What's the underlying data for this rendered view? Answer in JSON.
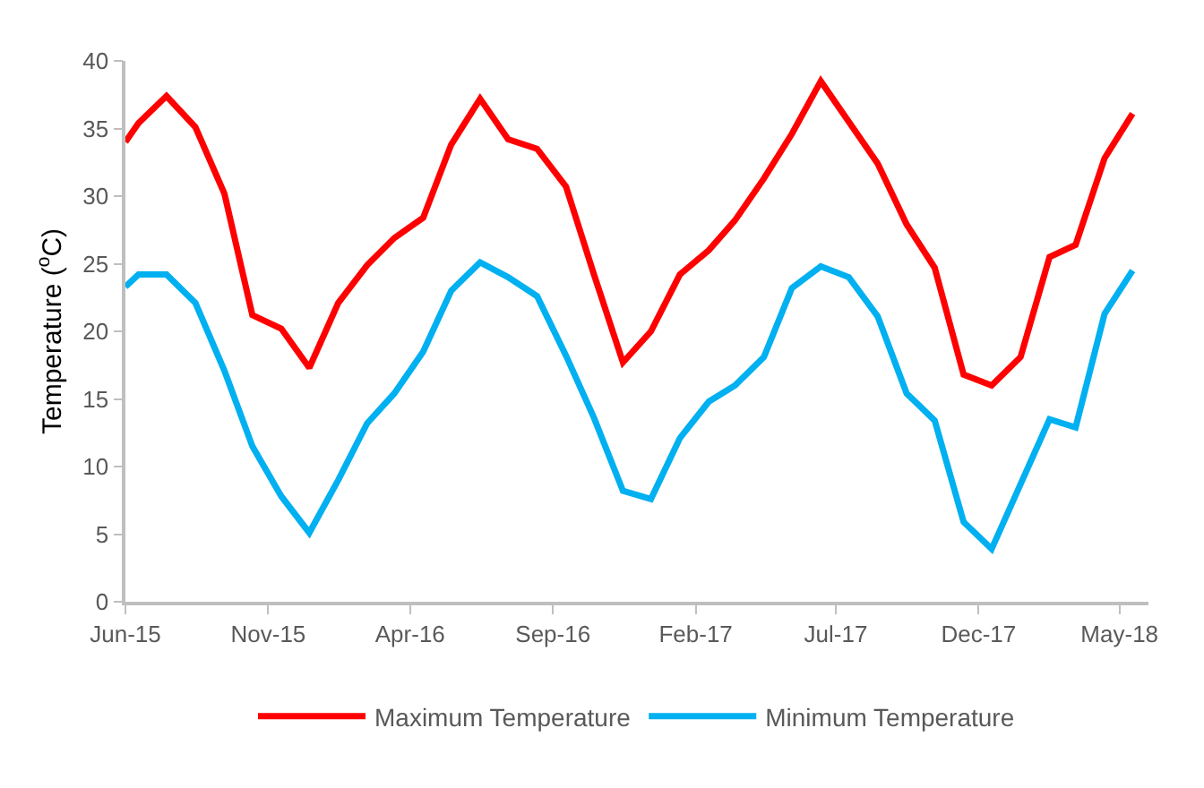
{
  "chart_data": {
    "type": "line",
    "ylabel": "Temperature ($^{o}$C)",
    "x": [
      "2015-06-01",
      "2015-06-15",
      "2015-07-15",
      "2015-08-15",
      "2015-09-15",
      "2015-10-15",
      "2015-11-15",
      "2015-12-15",
      "2016-01-15",
      "2016-02-15",
      "2016-03-15",
      "2016-04-15",
      "2016-05-15",
      "2016-06-15",
      "2016-07-15",
      "2016-08-15",
      "2016-09-15",
      "2016-10-15",
      "2016-11-15",
      "2016-12-15",
      "2017-01-15",
      "2017-02-15",
      "2017-03-15",
      "2017-04-15",
      "2017-05-15",
      "2017-06-15",
      "2017-07-15",
      "2017-08-15",
      "2017-09-15",
      "2017-10-15",
      "2017-11-15",
      "2017-12-15",
      "2018-01-15",
      "2018-02-15",
      "2018-03-15",
      "2018-04-15",
      "2018-05-15"
    ],
    "series": [
      {
        "name": "Maximum Temperature",
        "color": "#ff0000",
        "values": [
          34.0,
          35.4,
          37.4,
          35.1,
          30.2,
          21.2,
          20.2,
          17.3,
          22.1,
          24.9,
          26.9,
          28.4,
          33.8,
          37.2,
          34.2,
          33.5,
          30.7,
          24.2,
          17.7,
          20.0,
          24.2,
          26.0,
          28.2,
          31.3,
          34.6,
          38.5,
          35.5,
          32.4,
          27.9,
          24.7,
          16.8,
          16.0,
          18.1,
          25.5,
          26.4,
          32.8,
          36.1
        ]
      },
      {
        "name": "Minimum Temperature",
        "color": "#00b0f0",
        "values": [
          23.3,
          24.2,
          24.2,
          22.1,
          17.1,
          11.5,
          7.8,
          5.1,
          9.0,
          13.2,
          15.4,
          18.5,
          23.0,
          25.1,
          24.0,
          22.6,
          18.2,
          13.6,
          8.2,
          7.6,
          12.1,
          14.8,
          16.0,
          18.1,
          23.2,
          24.8,
          24.0,
          21.1,
          15.4,
          13.4,
          5.9,
          3.9,
          8.7,
          13.5,
          12.9,
          21.3,
          24.5
        ]
      }
    ],
    "xlim": [
      "2015-06-01",
      "2018-06-01"
    ],
    "xticks": [
      {
        "value": "2015-06-01",
        "label": "Jun-15"
      },
      {
        "value": "2015-11-01",
        "label": "Nov-15"
      },
      {
        "value": "2016-04-01",
        "label": "Apr-16"
      },
      {
        "value": "2016-09-01",
        "label": "Sep-16"
      },
      {
        "value": "2017-02-01",
        "label": "Feb-17"
      },
      {
        "value": "2017-07-01",
        "label": "Jul-17"
      },
      {
        "value": "2017-12-01",
        "label": "Dec-17"
      },
      {
        "value": "2018-05-01",
        "label": "May-18"
      }
    ],
    "ylim": [
      0,
      40
    ],
    "yticks": [
      0,
      5,
      10,
      15,
      20,
      25,
      30,
      35,
      40
    ],
    "grid": false,
    "legend": "bottom",
    "marker": "none",
    "line_style": "solid"
  }
}
